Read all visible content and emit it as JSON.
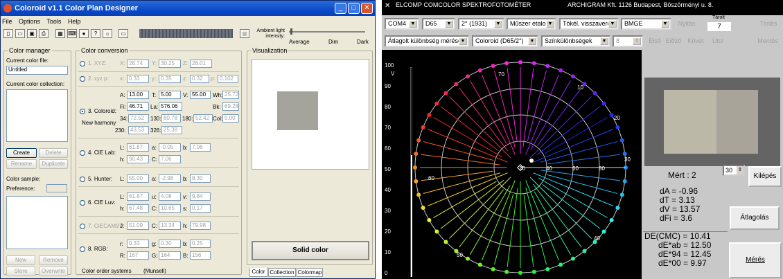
{
  "left_window": {
    "title": "Coloroid v1.1 Color Plan Designer",
    "menu": [
      "File",
      "Options",
      "Tools",
      "Help"
    ],
    "ambient": {
      "label": "Ambient light intensity:",
      "levels": [
        "Average",
        "Dim",
        "Dark"
      ]
    },
    "color_manager": {
      "title": "Color manager",
      "current_file_label": "Current color file:",
      "current_file_value": "Untitled",
      "collection_label": "Current color collection:",
      "buttons": [
        "Create",
        "Delete",
        "Rename",
        "Duplicate"
      ],
      "sample_label": "Color sample:",
      "preference_label": "Preference:",
      "bottom_buttons": [
        "New",
        "Remove",
        "Store",
        "Overwrite"
      ]
    },
    "conversion": {
      "title": "Color conversion",
      "xyz": {
        "label": "1. XYZ:",
        "X": "28.74",
        "Y": "30.25",
        "Z": "28.01"
      },
      "xyzp": {
        "label": "2. xyz p:",
        "x": "0.33",
        "y": "0.35",
        "z": "0.32",
        "p": "0.102"
      },
      "coloroid": {
        "label": "3. Coloroid:",
        "new_harmony": "New harmony",
        "A": "13.00",
        "T": "5.00",
        "V": "55.00",
        "Wh": "25.72",
        "Fi": "46.71",
        "La": "576.06",
        "Bk": "69.28",
        "Col": "5.00",
        "h34": "72.52",
        "h130": "80.78",
        "h180": "52.42",
        "h230": "43.53",
        "h326": "25.38"
      },
      "lab": {
        "label": "4. CIE Lab:",
        "L": "61.87",
        "a": "-0.05",
        "b": "7.06",
        "h": "90.43",
        "C": "7.06"
      },
      "hunter": {
        "label": "5. Hunter:",
        "L": "55.00",
        "a": "-2.98",
        "b": "8.30"
      },
      "luv": {
        "label": "6. CIE Luv:",
        "L": "61.87",
        "u": "4.08",
        "v": "9.84",
        "h": "67.48",
        "C": "10.65",
        "s": "0.17"
      },
      "ciecam": {
        "label": "7. CIECAM97:",
        "J": "51.09",
        "C": "13.34",
        "h": "79.98"
      },
      "rgb": {
        "label": "8. RGB:",
        "r": "0.33",
        "g": "0.30",
        "b": "0.25",
        "R": "167",
        "G": "164",
        "B": "156"
      },
      "order_systems": "Color order systems",
      "munsell": "(Munsell)"
    },
    "visualization": {
      "title": "Visualization",
      "solid_color": "Solid color",
      "tabs": [
        "Color",
        "Collection",
        "Colormap"
      ],
      "swatch": "#a4a39c"
    }
  },
  "right_window": {
    "title_left": "ELCOMP  COMCOLOR  SPEKTROFOTOMÉTER",
    "title_right": "ARCHIGRAM Kft. 1126 Budapest, Böszörményi u. 8.",
    "row1": {
      "port": "COM4",
      "illuminant": "D65",
      "observer": "2° (1931)",
      "standard": "Műszer etalon",
      "geometry": "Tökél. visszaverő",
      "file": "BMGE",
      "open": "Nyitás",
      "stored_label": "Tárolt",
      "stored_value": "7",
      "delete": "Törlés"
    },
    "row2": {
      "mode": "Átlagolt különbség mérése",
      "space": "Coloroid (D65/2°)",
      "view": "Színkülönbségek",
      "num": "8",
      "first": "Első",
      "prev": "Előző",
      "next": "Követ",
      "last": "Utol",
      "save": "Mentés"
    },
    "plot": {
      "v_label": "V",
      "v_ticks": [
        "100",
        "90",
        "80",
        "70",
        "60",
        "50",
        "40",
        "30",
        "20",
        "10",
        "0"
      ],
      "ring_labels": [
        "20",
        "40",
        "60",
        "80"
      ],
      "hue_labels": [
        "70",
        "10",
        "20",
        "30",
        "40",
        "50",
        "60"
      ]
    },
    "swatches": [
      "#bcb8a8",
      "#a8a499"
    ],
    "measured": "Mért : 2",
    "count": "30",
    "exit": "Kilépés",
    "diffs": [
      {
        "name": "dA",
        "value": "-0.96"
      },
      {
        "name": "dT",
        "value": "3.13"
      },
      {
        "name": "dV",
        "value": "13.57"
      },
      {
        "name": "dFi",
        "value": "3.6"
      }
    ],
    "average": "Átlagolás",
    "de": [
      {
        "name": "DE(CMC)",
        "value": "10.41"
      },
      {
        "name": "dE*ab",
        "value": "12.50"
      },
      {
        "name": "dE*94",
        "value": "12.45"
      },
      {
        "name": "dE*00",
        "value": "9.97"
      }
    ],
    "measure": "Mérés"
  }
}
